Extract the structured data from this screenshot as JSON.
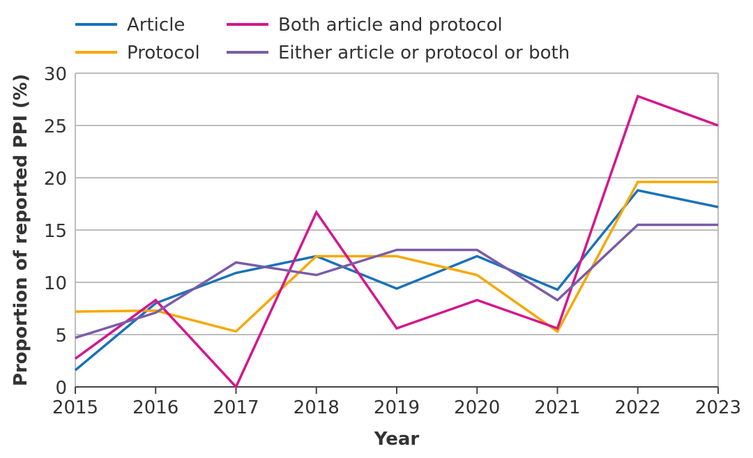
{
  "chart_data": {
    "type": "line",
    "title": "",
    "xlabel": "Year",
    "ylabel": "Proportion of reported PPI (%)",
    "x": [
      2015,
      2016,
      2017,
      2018,
      2019,
      2020,
      2021,
      2022,
      2023
    ],
    "x_tick_labels": [
      "2015",
      "2016",
      "2017",
      "2018",
      "2019",
      "2020",
      "2021",
      "2022",
      "2023"
    ],
    "ylim": [
      0,
      30
    ],
    "y_ticks": [
      0,
      5,
      10,
      15,
      20,
      25,
      30
    ],
    "y_tick_labels": [
      "0",
      "5",
      "10",
      "15",
      "20",
      "25",
      "30"
    ],
    "grid": "horizontal",
    "legend_placement": "top",
    "series": [
      {
        "name": "Article",
        "color": "#1a72b9",
        "values": [
          1.6,
          8.0,
          10.9,
          12.5,
          9.4,
          12.5,
          9.3,
          18.8,
          17.2
        ]
      },
      {
        "name": "Protocol",
        "color": "#f6a800",
        "values": [
          7.2,
          7.3,
          5.3,
          12.5,
          12.5,
          10.7,
          5.3,
          19.6,
          19.6
        ]
      },
      {
        "name": "Both article and protocol",
        "color": "#d4168d",
        "values": [
          2.7,
          8.3,
          0,
          16.7,
          5.6,
          8.3,
          5.6,
          27.8,
          25.0
        ]
      },
      {
        "name": "Either article or protocol or both",
        "color": "#7a5ca6",
        "values": [
          4.7,
          7.1,
          11.9,
          10.7,
          13.1,
          13.1,
          8.3,
          15.5,
          15.5
        ]
      }
    ]
  }
}
